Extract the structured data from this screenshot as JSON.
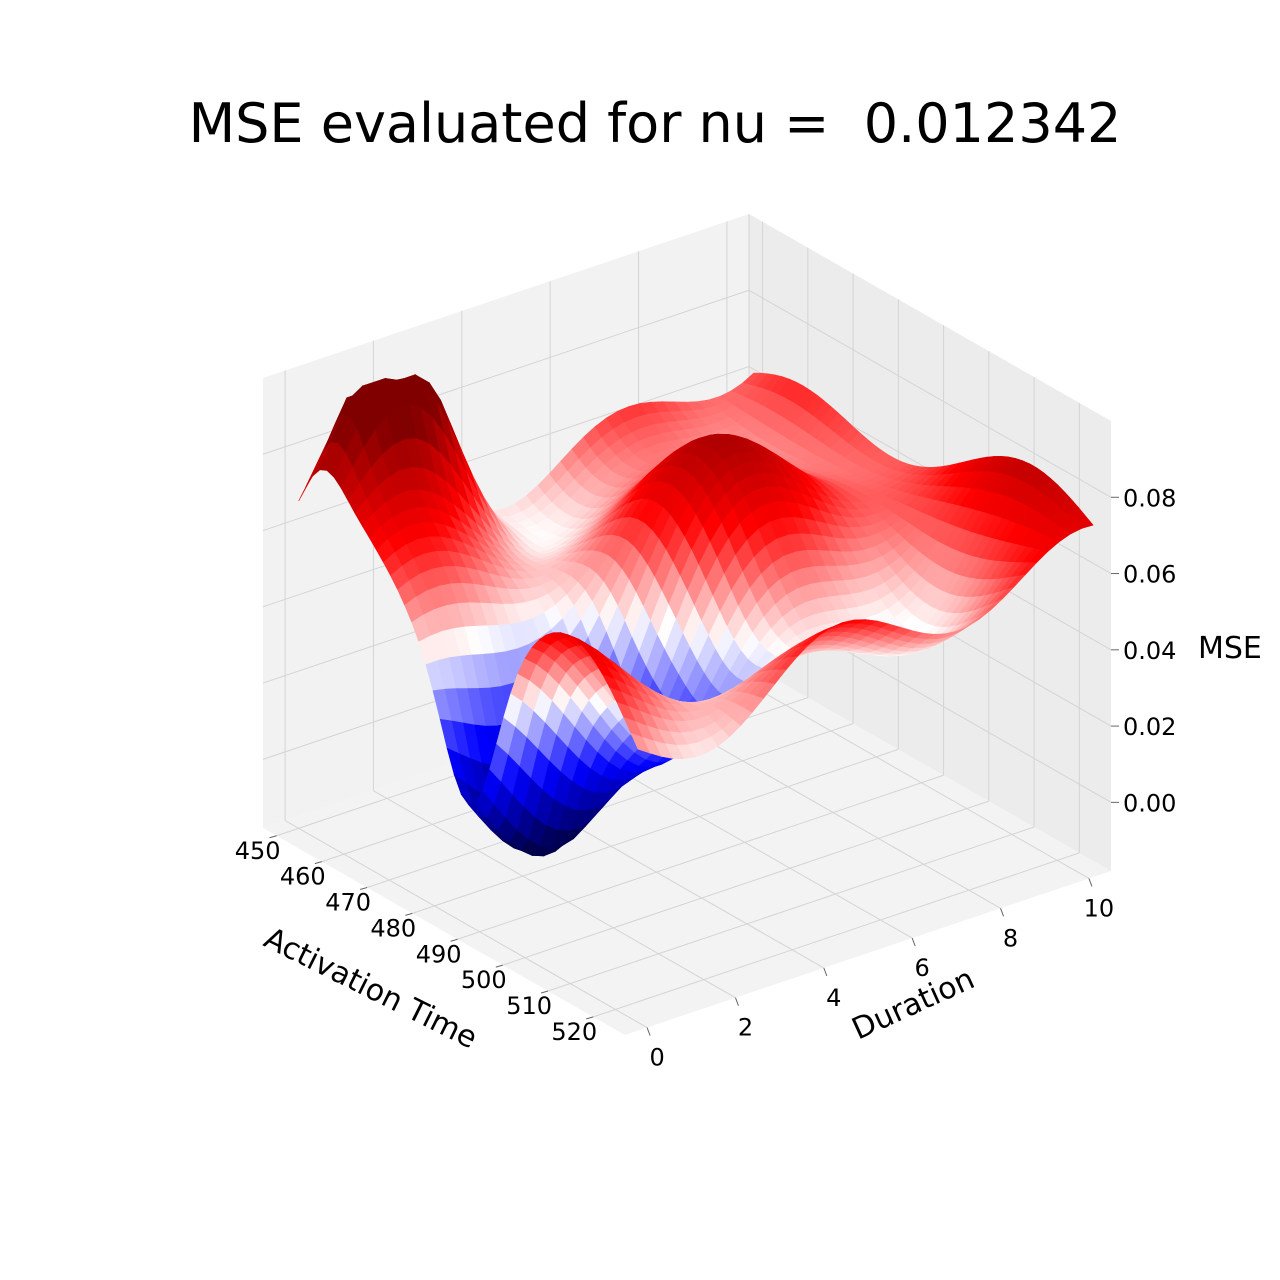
{
  "chart_data": {
    "type": "surface3d",
    "title": "MSE evaluated for nu =  0.012342",
    "xlabel": "Activation Time",
    "ylabel": "Duration",
    "zlabel": "MSE",
    "x_ticks": [
      "450",
      "460",
      "470",
      "480",
      "490",
      "500",
      "510",
      "520"
    ],
    "y_ticks": [
      "0",
      "2",
      "4",
      "6",
      "8",
      "10"
    ],
    "z_ticks": [
      "0.00",
      "0.02",
      "0.04",
      "0.06",
      "0.08"
    ],
    "xlim": [
      447,
      527
    ],
    "ylim": [
      -0.5,
      10.5
    ],
    "zlim": [
      -0.018,
      0.1
    ],
    "colormap": "seismic",
    "color_range": [
      0.0,
      0.09
    ],
    "surface": {
      "description_points": [
        {
          "activation_time": 455,
          "duration": 0,
          "mse": 0.061
        },
        {
          "activation_time": 455,
          "duration": 1.5,
          "mse": 0.093
        },
        {
          "activation_time": 460,
          "duration": 3,
          "mse": 0.06
        },
        {
          "activation_time": 470,
          "duration": 0,
          "mse": 0.07
        },
        {
          "activation_time": 480,
          "duration": 1,
          "mse": 0.012
        },
        {
          "activation_time": 490,
          "duration": 0,
          "mse": 0.0
        },
        {
          "activation_time": 500,
          "duration": 5,
          "mse": 0.07
        },
        {
          "activation_time": 510,
          "duration": 8,
          "mse": 0.072
        },
        {
          "activation_time": 520,
          "duration": 10,
          "mse": 0.075
        }
      ]
    },
    "grid": true
  }
}
